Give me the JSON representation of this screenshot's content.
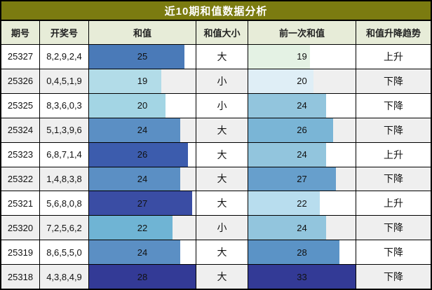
{
  "title": "近10期和值数据分析",
  "colors": {
    "title_bg": "#7b7b10",
    "title_text": "#ffffff",
    "header_bg": "#e7ecd8",
    "header_text": "#222222",
    "row_bg": "#ffffff",
    "row_alt_bg": "#efefef",
    "border": "#000000"
  },
  "columns": [
    "期号",
    "开奖号",
    "和值",
    "和值大小",
    "前一次和值",
    "和值升降趋势"
  ],
  "bars": {
    "sum_max": 28,
    "prev_max": 33
  },
  "rows": [
    {
      "period": "25327",
      "numbers": "8,2,9,2,4",
      "sum": 25,
      "sum_color": "#4a7ab8",
      "size": "大",
      "prev": 19,
      "prev_color": "#e4f2e4",
      "trend": "上升"
    },
    {
      "period": "25326",
      "numbers": "0,4,5,1,9",
      "sum": 19,
      "sum_color": "#b2dce8",
      "size": "小",
      "prev": 20,
      "prev_color": "#dfeef6",
      "trend": "下降"
    },
    {
      "period": "25325",
      "numbers": "8,3,6,0,3",
      "sum": 20,
      "sum_color": "#a3d5e4",
      "size": "小",
      "prev": 24,
      "prev_color": "#92c5dd",
      "trend": "下降"
    },
    {
      "period": "25324",
      "numbers": "5,1,3,9,6",
      "sum": 24,
      "sum_color": "#5b8fc4",
      "size": "大",
      "prev": 26,
      "prev_color": "#7ab5d6",
      "trend": "下降"
    },
    {
      "period": "25323",
      "numbers": "6,8,7,1,4",
      "sum": 26,
      "sum_color": "#3c5cad",
      "size": "大",
      "prev": 24,
      "prev_color": "#92c5dd",
      "trend": "上升"
    },
    {
      "period": "25322",
      "numbers": "1,4,8,3,8",
      "sum": 24,
      "sum_color": "#5b8fc4",
      "size": "大",
      "prev": 27,
      "prev_color": "#679fcc",
      "trend": "下降"
    },
    {
      "period": "25321",
      "numbers": "5,6,8,0,8",
      "sum": 27,
      "sum_color": "#3a4da4",
      "size": "大",
      "prev": 22,
      "prev_color": "#b8ddee",
      "trend": "上升"
    },
    {
      "period": "25320",
      "numbers": "7,2,5,6,2",
      "sum": 22,
      "sum_color": "#6fb4d4",
      "size": "小",
      "prev": 24,
      "prev_color": "#92c5dd",
      "trend": "下降"
    },
    {
      "period": "25319",
      "numbers": "8,6,5,5,0",
      "sum": 24,
      "sum_color": "#5b8fc4",
      "size": "大",
      "prev": 28,
      "prev_color": "#5b93c6",
      "trend": "下降"
    },
    {
      "period": "25318",
      "numbers": "4,3,8,4,9",
      "sum": 28,
      "sum_color": "#333a96",
      "size": "大",
      "prev": 33,
      "prev_color": "#333a96",
      "trend": "下降"
    }
  ],
  "chart_data": {
    "type": "table",
    "title": "近10期和值数据分析",
    "columns": [
      "期号",
      "开奖号",
      "和值",
      "和值大小",
      "前一次和值",
      "和值升降趋势"
    ],
    "rows": [
      [
        "25327",
        "8,2,9,2,4",
        25,
        "大",
        19,
        "上升"
      ],
      [
        "25326",
        "0,4,5,1,9",
        19,
        "小",
        20,
        "下降"
      ],
      [
        "25325",
        "8,3,6,0,3",
        20,
        "小",
        24,
        "下降"
      ],
      [
        "25324",
        "5,1,3,9,6",
        24,
        "大",
        26,
        "下降"
      ],
      [
        "25323",
        "6,8,7,1,4",
        26,
        "大",
        24,
        "上升"
      ],
      [
        "25322",
        "1,4,8,3,8",
        24,
        "大",
        27,
        "下降"
      ],
      [
        "25321",
        "5,6,8,0,8",
        27,
        "大",
        22,
        "上升"
      ],
      [
        "25320",
        "7,2,5,6,2",
        22,
        "小",
        24,
        "下降"
      ],
      [
        "25319",
        "8,6,5,5,0",
        24,
        "大",
        28,
        "下降"
      ],
      [
        "25318",
        "4,3,8,4,9",
        28,
        "大",
        33,
        "下降"
      ]
    ],
    "bar_scales": {
      "和值": [
        0,
        28
      ],
      "前一次和值": [
        0,
        33
      ]
    }
  }
}
